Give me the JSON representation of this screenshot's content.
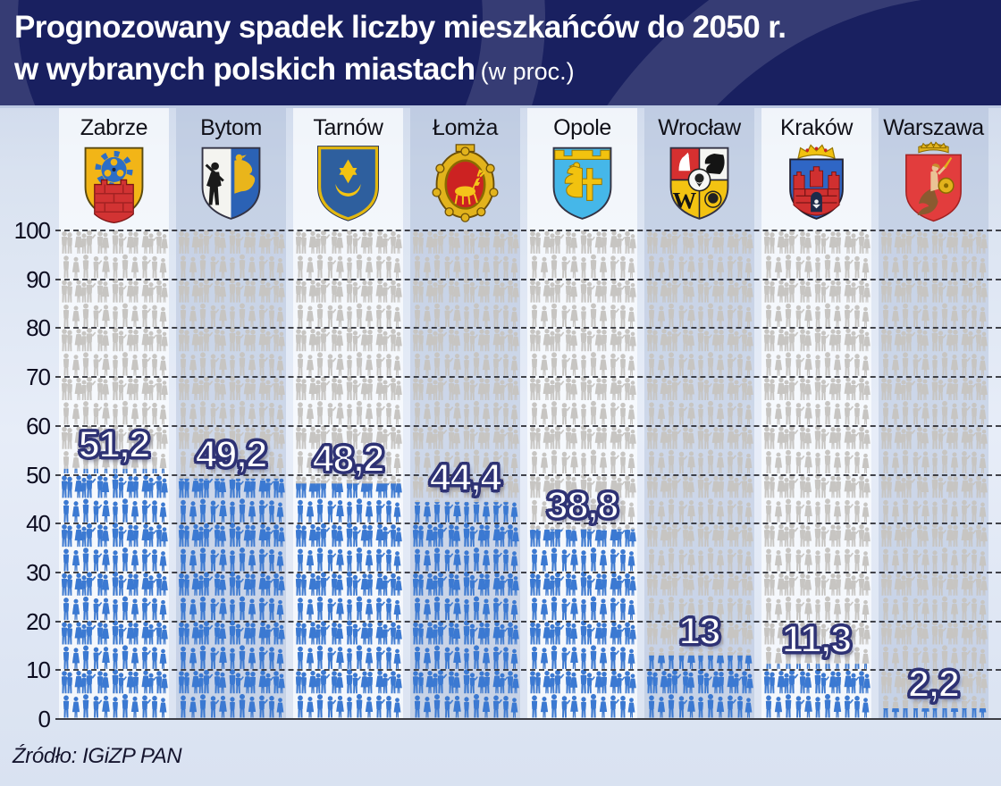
{
  "title": {
    "line1": "Prognozowany spadek liczby mieszkańców do 2050 r.",
    "line2": "w wybranych polskich miastach",
    "line2_suffix": "(w proc.)"
  },
  "source": "Źródło: IGiZP PAN",
  "chart_data": {
    "type": "pictogram-bar",
    "title": "Prognozowany spadek liczby mieszkańców do 2050 r. w wybranych polskich miastach (w proc.)",
    "unit": "proc.",
    "categories": [
      "Zabrze",
      "Bytom",
      "Tarnów",
      "Łomża",
      "Opole",
      "Wrocław",
      "Kraków",
      "Warszawa"
    ],
    "values": [
      51.2,
      49.2,
      48.2,
      44.4,
      38.8,
      13,
      11.3,
      2.2
    ],
    "value_labels": [
      "51,2",
      "49,2",
      "48,2",
      "44,4",
      "38,8",
      "13",
      "11,3",
      "2,2"
    ],
    "ylim": [
      0,
      100
    ],
    "yticks": [
      100,
      90,
      80,
      70,
      60,
      50,
      40,
      30,
      20,
      10,
      0
    ],
    "grid": "dashed-horizontal",
    "legend": "none",
    "colors": {
      "decline_fill": "#3b79d2",
      "remaining_fill": "#c7c5c2",
      "title_bg": "#192060",
      "value_text": "#ffffff",
      "value_outline": "#2e3274"
    },
    "crest_icons": [
      "crest-zabrze",
      "crest-bytom",
      "crest-tarnow",
      "crest-lomza",
      "crest-opole",
      "crest-wroclaw",
      "crest-krakow",
      "crest-warszawa"
    ]
  }
}
